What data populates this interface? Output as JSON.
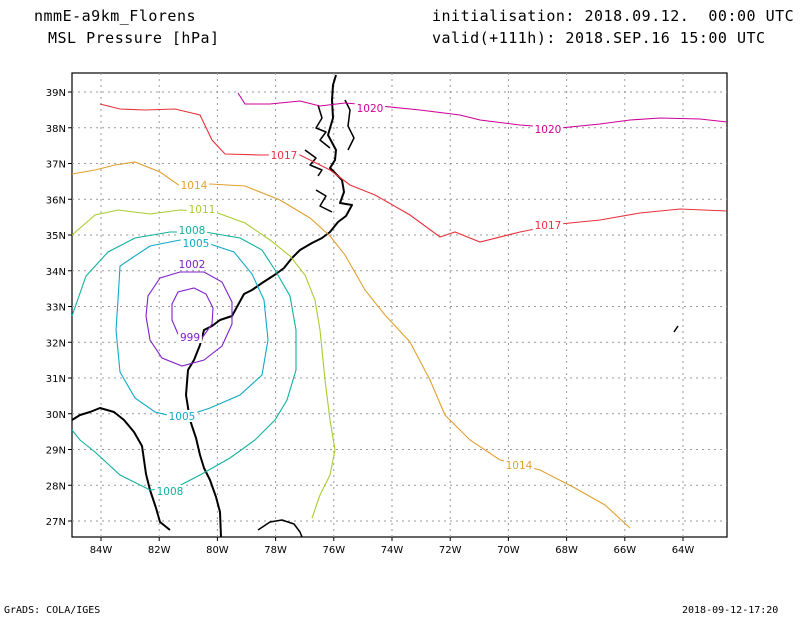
{
  "header": {
    "model": "nmmE-a9km_Florens",
    "variable": "MSL Pressure [hPa]",
    "init": "initialisation: 2018.09.12.  00:00 UTC",
    "valid": "valid(+111h): 2018.SEP.16 15:00 UTC"
  },
  "footer": {
    "credit": "GrADS: COLA/IGES",
    "timestamp": "2018-09-12-17:20"
  },
  "axes": {
    "lat_ticks": [
      "39N",
      "38N",
      "37N",
      "36N",
      "35N",
      "34N",
      "33N",
      "32N",
      "31N",
      "30N",
      "29N",
      "28N",
      "27N"
    ],
    "lon_ticks": [
      "84W",
      "82W",
      "80W",
      "78W",
      "76W",
      "74W",
      "72W",
      "70W",
      "68W",
      "66W",
      "64W"
    ]
  },
  "contours": [
    {
      "level": "1020",
      "color": "#cc0099"
    },
    {
      "level": "1017",
      "color": "#e8323c"
    },
    {
      "level": "1014",
      "color": "#e0a030"
    },
    {
      "level": "1011",
      "color": "#a8cc30"
    },
    {
      "level": "1008",
      "color": "#10b0a0"
    },
    {
      "level": "1005",
      "color": "#10a8c8"
    },
    {
      "level": "1002",
      "color": "#8020c8"
    },
    {
      "level": "999",
      "color": "#8020c8"
    }
  ],
  "contour_labels": [
    {
      "text": "1020",
      "color": "#cc0099"
    },
    {
      "text": "1020",
      "color": "#cc0099"
    },
    {
      "text": "1017",
      "color": "#e8323c"
    },
    {
      "text": "1017",
      "color": "#e8323c"
    },
    {
      "text": "1014",
      "color": "#e0a030"
    },
    {
      "text": "1014",
      "color": "#e0a030"
    },
    {
      "text": "1011",
      "color": "#a8cc30"
    },
    {
      "text": "1008",
      "color": "#10b0a0"
    },
    {
      "text": "1008",
      "color": "#10b0a0"
    },
    {
      "text": "1005",
      "color": "#10a8c8"
    },
    {
      "text": "1005",
      "color": "#10a8c8"
    },
    {
      "text": "1002",
      "color": "#8020c8"
    },
    {
      "text": "999",
      "color": "#8020c8"
    }
  ]
}
